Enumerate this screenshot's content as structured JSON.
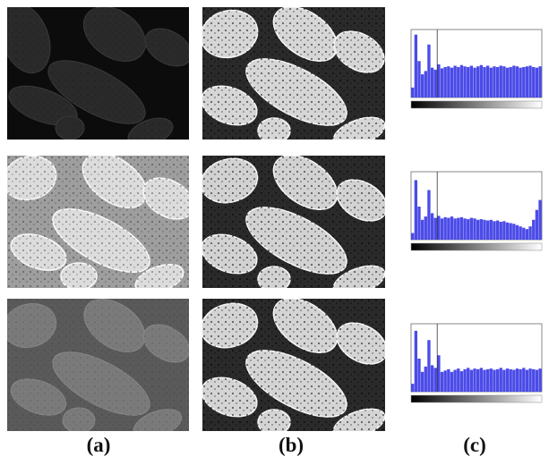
{
  "figure": {
    "labels": [
      "(a)",
      "(b)",
      "(c)"
    ]
  },
  "rows": [
    {
      "a_tone": "dark",
      "b_tone": "equalized"
    },
    {
      "a_tone": "bright",
      "b_tone": "equalized"
    },
    {
      "a_tone": "low-contrast",
      "b_tone": "equalized"
    }
  ],
  "chart_data": [
    {
      "type": "bar",
      "panel": "row-1-histogram",
      "xlim": [
        0,
        255
      ],
      "values": [
        0.15,
        0.95,
        0.55,
        0.35,
        0.4,
        0.8,
        0.45,
        0.42,
        0.5,
        0.44,
        0.46,
        0.47,
        0.45,
        0.48,
        0.46,
        0.49,
        0.47,
        0.46,
        0.48,
        0.45,
        0.47,
        0.49,
        0.46,
        0.48,
        0.45,
        0.47,
        0.46,
        0.48,
        0.47,
        0.45,
        0.46,
        0.48,
        0.47,
        0.45,
        0.46,
        0.47,
        0.48,
        0.46,
        0.45,
        0.47
      ],
      "color": "#4b4be8"
    },
    {
      "type": "bar",
      "panel": "row-2-histogram",
      "xlim": [
        0,
        255
      ],
      "values": [
        0.1,
        0.9,
        0.5,
        0.3,
        0.35,
        0.75,
        0.4,
        0.33,
        0.36,
        0.32,
        0.34,
        0.33,
        0.35,
        0.32,
        0.33,
        0.34,
        0.32,
        0.31,
        0.33,
        0.32,
        0.3,
        0.31,
        0.3,
        0.29,
        0.3,
        0.28,
        0.29,
        0.27,
        0.28,
        0.26,
        0.25,
        0.24,
        0.22,
        0.2,
        0.18,
        0.16,
        0.2,
        0.3,
        0.45,
        0.6
      ],
      "color": "#4b4be8"
    },
    {
      "type": "bar",
      "panel": "row-3-histogram",
      "xlim": [
        0,
        255
      ],
      "values": [
        0.12,
        0.92,
        0.5,
        0.3,
        0.38,
        0.78,
        0.4,
        0.36,
        0.55,
        0.3,
        0.32,
        0.34,
        0.3,
        0.33,
        0.35,
        0.31,
        0.34,
        0.36,
        0.33,
        0.35,
        0.34,
        0.36,
        0.33,
        0.34,
        0.35,
        0.33,
        0.34,
        0.36,
        0.33,
        0.35,
        0.34,
        0.33,
        0.35,
        0.34,
        0.36,
        0.33,
        0.35,
        0.34,
        0.33,
        0.35
      ],
      "color": "#4b4be8"
    }
  ]
}
